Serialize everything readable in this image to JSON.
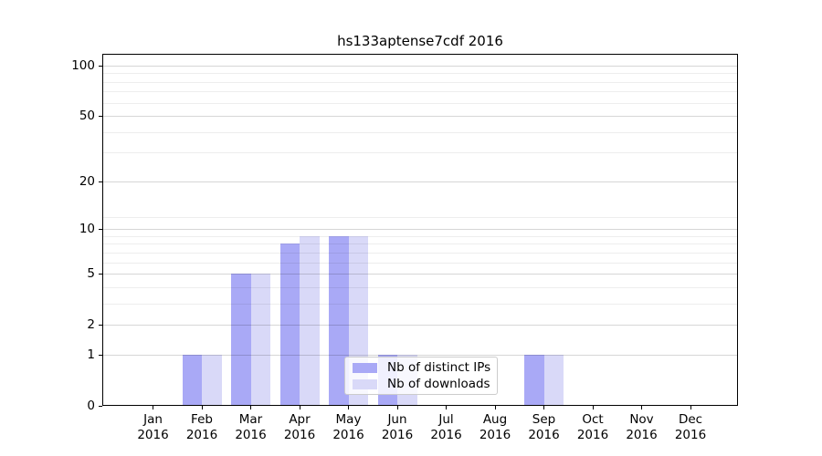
{
  "chart_data": {
    "type": "bar",
    "title": "hs133aptense7cdf 2016",
    "categories": [
      {
        "month": "Jan",
        "year": "2016"
      },
      {
        "month": "Feb",
        "year": "2016"
      },
      {
        "month": "Mar",
        "year": "2016"
      },
      {
        "month": "Apr",
        "year": "2016"
      },
      {
        "month": "May",
        "year": "2016"
      },
      {
        "month": "Jun",
        "year": "2016"
      },
      {
        "month": "Jul",
        "year": "2016"
      },
      {
        "month": "Aug",
        "year": "2016"
      },
      {
        "month": "Sep",
        "year": "2016"
      },
      {
        "month": "Oct",
        "year": "2016"
      },
      {
        "month": "Nov",
        "year": "2016"
      },
      {
        "month": "Dec",
        "year": "2016"
      }
    ],
    "series": [
      {
        "name": "Nb of distinct IPs",
        "color": "#a9a9f6",
        "values": [
          0,
          1,
          5,
          8,
          9,
          1,
          0,
          0,
          1,
          0,
          0,
          0
        ]
      },
      {
        "name": "Nb of downloads",
        "color": "#d9d9f8",
        "values": [
          0,
          1,
          5,
          9,
          9,
          1,
          0,
          0,
          1,
          0,
          0,
          0
        ]
      }
    ],
    "y_axis": {
      "scale": "log1p",
      "major_ticks": [
        0,
        1,
        2,
        5,
        10,
        20,
        50,
        100
      ],
      "minor_ticks": [
        3,
        4,
        6,
        7,
        8,
        9,
        12,
        30,
        40,
        60,
        70,
        80,
        90
      ],
      "ylim": [
        0,
        117
      ]
    },
    "x_axis": {
      "label": "",
      "tick_label_lines": 2
    },
    "grid": true,
    "legend_position": "lower center",
    "colors": {
      "background": "#ffffff",
      "spine": "#000000",
      "legend_border": "#cccccc"
    }
  }
}
